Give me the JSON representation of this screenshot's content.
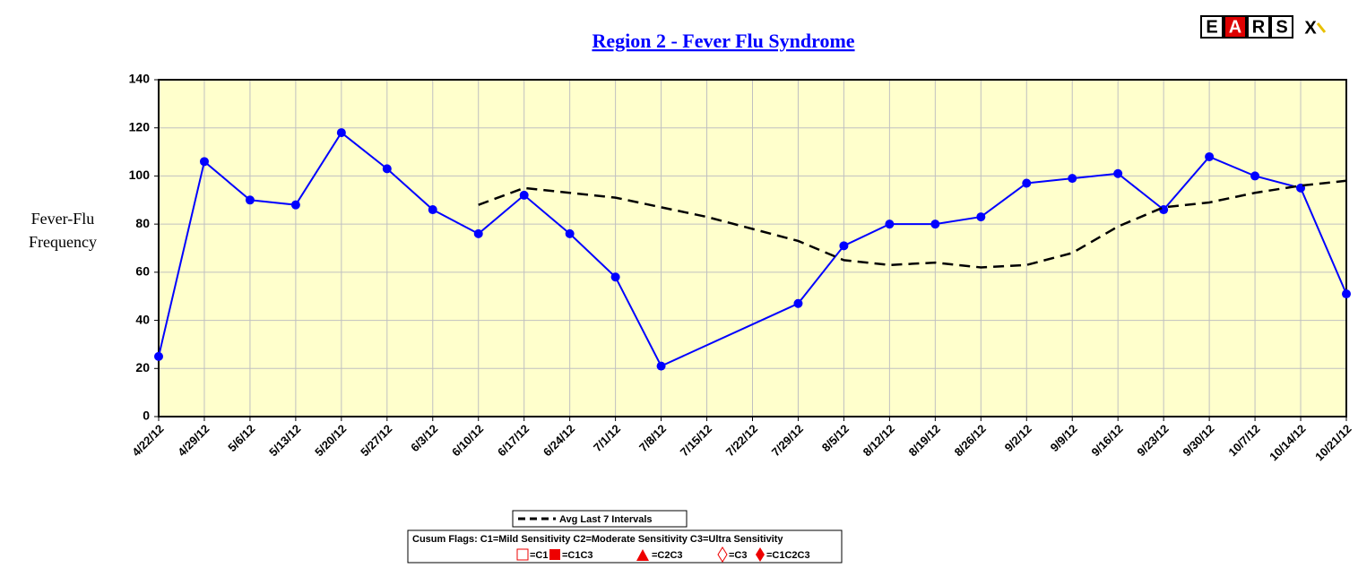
{
  "chart_data": {
    "type": "line",
    "title": "Region 2 - Fever Flu Syndrome",
    "logo": [
      "E",
      "A",
      "R",
      "S",
      "X"
    ],
    "y_label": [
      "Fever-Flu",
      "Frequency"
    ],
    "categories": [
      "4/22/12",
      "4/29/12",
      "5/6/12",
      "5/13/12",
      "5/20/12",
      "5/27/12",
      "6/3/12",
      "6/10/12",
      "6/17/12",
      "6/24/12",
      "7/1/12",
      "7/8/12",
      "7/15/12",
      "7/22/12",
      "7/29/12",
      "8/5/12",
      "8/12/12",
      "8/19/12",
      "8/26/12",
      "9/2/12",
      "9/9/12",
      "9/16/12",
      "9/23/12",
      "9/30/12",
      "10/7/12",
      "10/14/12",
      "10/21/12"
    ],
    "series": [
      {
        "color": "#0000ff",
        "values": [
          25,
          106,
          90,
          88,
          118,
          103,
          86,
          76,
          92,
          76,
          58,
          21,
          null,
          null,
          47,
          71,
          80,
          80,
          83,
          97,
          99,
          101,
          86,
          108,
          100,
          95,
          51
        ]
      },
      {
        "name": "Avg Last 7 Intervals",
        "color": "#000000",
        "dashed": true,
        "values": [
          null,
          null,
          null,
          null,
          null,
          null,
          null,
          88,
          95,
          93,
          91,
          87,
          83,
          78,
          73,
          65,
          63,
          64,
          62,
          63,
          68,
          79,
          87,
          89,
          93,
          96,
          98
        ]
      }
    ],
    "ylim": [
      0,
      140
    ],
    "yticks": [
      0,
      20,
      40,
      60,
      80,
      100,
      120,
      140
    ],
    "grid": true,
    "plot_background": "#ffffcc",
    "flags_title": "Cusum Flags:  C1=Mild Sensitivity  C2=Moderate Sensitivity  C3=Ultra Sensitivity",
    "flags": [
      "=C1",
      "=C1C3",
      "=C2C3",
      "=C3",
      "=C1C2C3"
    ]
  }
}
